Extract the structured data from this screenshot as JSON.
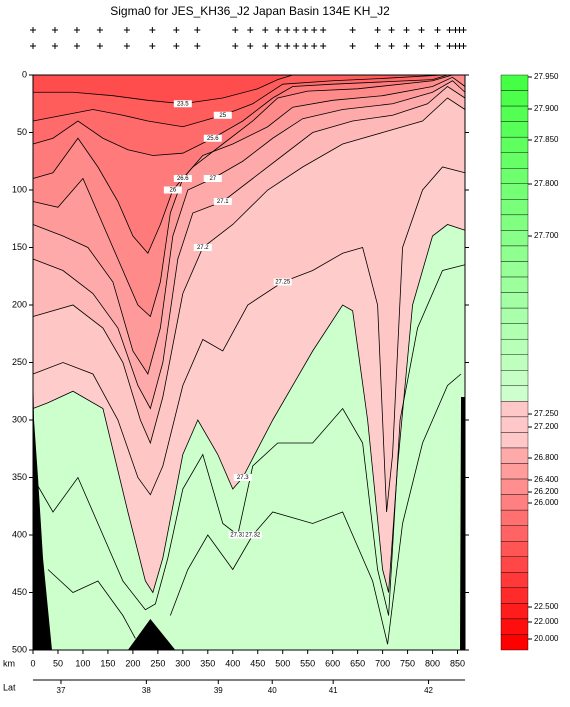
{
  "chart_data": {
    "type": "contour",
    "title": "Sigma0 for JES_KH36_J2 Japan Basin 134E KH_J2",
    "x_label": "km",
    "xlim": [
      0,
      865
    ],
    "ylim": [
      0,
      500
    ],
    "xticks": [
      0,
      50,
      100,
      150,
      200,
      250,
      300,
      350,
      400,
      450,
      500,
      550,
      600,
      650,
      700,
      750,
      800,
      850
    ],
    "yticks": [
      0,
      50,
      100,
      150,
      200,
      250,
      300,
      350,
      400,
      450,
      500
    ],
    "lat_label": "Lat",
    "lat_ticks": [
      {
        "value": 56,
        "label": "37"
      },
      {
        "value": 227,
        "label": "38"
      },
      {
        "value": 371,
        "label": "39"
      },
      {
        "value": 479,
        "label": "40"
      },
      {
        "value": 601,
        "label": "41"
      },
      {
        "value": 792,
        "label": "42"
      }
    ],
    "stations_km": [
      0,
      44,
      88,
      134,
      188,
      239,
      287,
      329,
      405,
      435,
      465,
      491,
      509,
      527,
      545,
      563,
      581,
      640,
      690,
      718,
      748,
      778,
      810,
      834,
      846,
      854,
      862
    ],
    "background": "#ff4c4c",
    "series": [
      {
        "name": "23.5",
        "color": "#ff5c5c",
        "x": [
          0,
          80,
          160,
          230,
          300,
          380,
          450,
          490,
          520
        ],
        "y": [
          15,
          15,
          18,
          22,
          25,
          20,
          12,
          4,
          0
        ]
      },
      {
        "name": "25",
        "color": "#ff6a6a",
        "x": [
          0,
          60,
          120,
          180,
          230,
          300,
          380,
          440,
          500,
          600,
          700,
          820
        ],
        "y": [
          40,
          35,
          30,
          35,
          40,
          45,
          35,
          25,
          8,
          5,
          3,
          0
        ]
      },
      {
        "name": "25.6",
        "color": "#ff7a7a",
        "x": [
          0,
          40,
          90,
          140,
          190,
          240,
          300,
          360,
          420,
          480,
          520,
          600,
          700,
          800,
          830
        ],
        "y": [
          60,
          55,
          40,
          55,
          65,
          70,
          68,
          55,
          40,
          20,
          10,
          8,
          6,
          4,
          0
        ]
      },
      {
        "name": "26",
        "color": "#ff8a8a",
        "x": [
          0,
          40,
          90,
          130,
          170,
          200,
          230,
          255,
          280,
          320,
          380,
          440,
          490,
          550,
          650,
          800,
          840
        ],
        "y": [
          90,
          85,
          55,
          80,
          110,
          140,
          155,
          130,
          100,
          80,
          60,
          40,
          20,
          14,
          12,
          5,
          0
        ]
      },
      {
        "name": "26.6",
        "color": "#ff9a9a",
        "x": [
          0,
          50,
          100,
          130,
          170,
          210,
          235,
          255,
          275,
          300,
          340,
          400,
          470,
          520,
          600,
          700,
          800,
          840,
          865
        ],
        "y": [
          110,
          115,
          90,
          120,
          160,
          200,
          210,
          180,
          120,
          90,
          70,
          60,
          45,
          28,
          22,
          18,
          10,
          2,
          10
        ]
      },
      {
        "name": "27",
        "color": "#ffaaaa",
        "x": [
          0,
          60,
          110,
          160,
          200,
          230,
          255,
          280,
          310,
          360,
          420,
          480,
          540,
          620,
          720,
          800,
          840,
          865
        ],
        "y": [
          130,
          140,
          150,
          180,
          240,
          260,
          220,
          140,
          100,
          90,
          75,
          55,
          38,
          30,
          25,
          15,
          5,
          15
        ]
      },
      {
        "name": "27.1",
        "color": "#ffb8b8",
        "x": [
          0,
          60,
          120,
          170,
          210,
          235,
          260,
          290,
          320,
          380,
          440,
          500,
          560,
          640,
          720,
          790,
          830,
          865
        ],
        "y": [
          160,
          170,
          190,
          220,
          270,
          290,
          250,
          160,
          120,
          110,
          90,
          70,
          50,
          40,
          35,
          25,
          10,
          20
        ]
      },
      {
        "name": "27.2",
        "color": "#ffc6c6",
        "x": [
          0,
          80,
          140,
          180,
          215,
          235,
          260,
          300,
          340,
          400,
          470,
          540,
          620,
          700,
          780,
          830,
          865
        ],
        "y": [
          210,
          200,
          220,
          250,
          300,
          320,
          280,
          190,
          150,
          130,
          100,
          80,
          60,
          50,
          40,
          20,
          30
        ]
      },
      {
        "name": "27.25",
        "color": "#ffcccc",
        "x": [
          0,
          60,
          120,
          170,
          210,
          235,
          260,
          300,
          340,
          380,
          430,
          500,
          560,
          620,
          660,
          690,
          708,
          720,
          740,
          780,
          820,
          865
        ],
        "y": [
          260,
          250,
          260,
          300,
          350,
          365,
          340,
          270,
          230,
          240,
          200,
          180,
          170,
          155,
          150,
          200,
          380,
          330,
          150,
          100,
          80,
          85
        ]
      },
      {
        "name": "27.3",
        "color": "#ccffcc",
        "x": [
          0,
          30,
          80,
          140,
          190,
          225,
          240,
          260,
          300,
          330,
          370,
          400,
          420,
          480,
          560,
          620,
          640,
          670,
          700,
          712,
          730,
          760,
          800,
          830,
          865
        ],
        "y": [
          290,
          285,
          275,
          290,
          380,
          440,
          450,
          420,
          330,
          300,
          330,
          360,
          350,
          300,
          240,
          200,
          205,
          300,
          430,
          450,
          340,
          200,
          140,
          130,
          135
        ]
      },
      {
        "name": "27.31",
        "x": [
          0,
          40,
          90,
          130,
          180,
          225,
          245,
          270,
          300,
          340,
          380,
          410,
          440,
          490,
          560,
          620,
          660,
          690,
          712,
          735,
          770,
          820,
          865
        ],
        "y": [
          350,
          380,
          350,
          390,
          440,
          465,
          460,
          420,
          360,
          330,
          390,
          400,
          340,
          320,
          320,
          290,
          320,
          430,
          470,
          300,
          220,
          170,
          165
        ]
      },
      {
        "name": "27.32",
        "x": [
          30,
          80,
          130,
          180,
          205,
          null,
          275,
          310,
          350,
          400,
          440,
          480,
          560,
          620,
          680,
          710,
          740,
          780,
          830,
          857
        ],
        "y": [
          430,
          450,
          440,
          470,
          490,
          null,
          470,
          430,
          400,
          430,
          400,
          380,
          390,
          380,
          440,
          495,
          390,
          320,
          270,
          260
        ]
      }
    ],
    "seafloor": {
      "color": "#000000",
      "x": [
        0,
        2,
        10,
        20,
        38,
        190,
        235,
        285,
        855,
        857,
        865
      ],
      "y": [
        250,
        300,
        350,
        420,
        500,
        500,
        473,
        500,
        500,
        280,
        280
      ]
    },
    "colorbar_ticks": [
      {
        "value": 27.95,
        "label": "27.950"
      },
      {
        "value": 27.9,
        "label": "27.900"
      },
      {
        "value": 27.85,
        "label": "27.850"
      },
      {
        "value": 27.8,
        "label": "27.800"
      },
      {
        "value": 27.7,
        "label": "27.700"
      },
      {
        "value": 27.25,
        "label": "27.250"
      },
      {
        "value": 27.2,
        "label": "27.200"
      },
      {
        "value": 26.8,
        "label": "26.800"
      },
      {
        "value": 26.4,
        "label": "26.400"
      },
      {
        "value": 26.2,
        "label": "26.200"
      },
      {
        "value": 26,
        "label": "26.000"
      },
      {
        "value": 22.5,
        "label": "22.500"
      },
      {
        "value": 22,
        "label": "22.000"
      },
      {
        "value": 20,
        "label": "20.000"
      }
    ]
  }
}
